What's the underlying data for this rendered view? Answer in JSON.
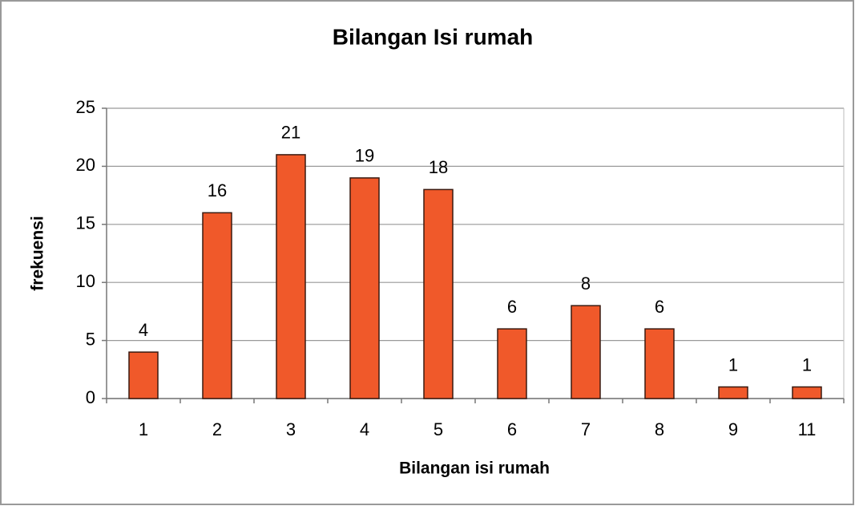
{
  "chart_data": {
    "type": "bar",
    "title": "Bilangan Isi rumah",
    "x_label": "Bilangan isi rumah",
    "y_label": "frekuensi",
    "categories": [
      "1",
      "2",
      "3",
      "4",
      "5",
      "6",
      "7",
      "8",
      "9",
      "11"
    ],
    "values": [
      4,
      16,
      21,
      19,
      18,
      6,
      8,
      6,
      1,
      1
    ],
    "color": "#f0592a",
    "ylim": [
      0,
      25
    ],
    "yticks": [
      0,
      5,
      10,
      15,
      20,
      25
    ],
    "grid": true
  }
}
